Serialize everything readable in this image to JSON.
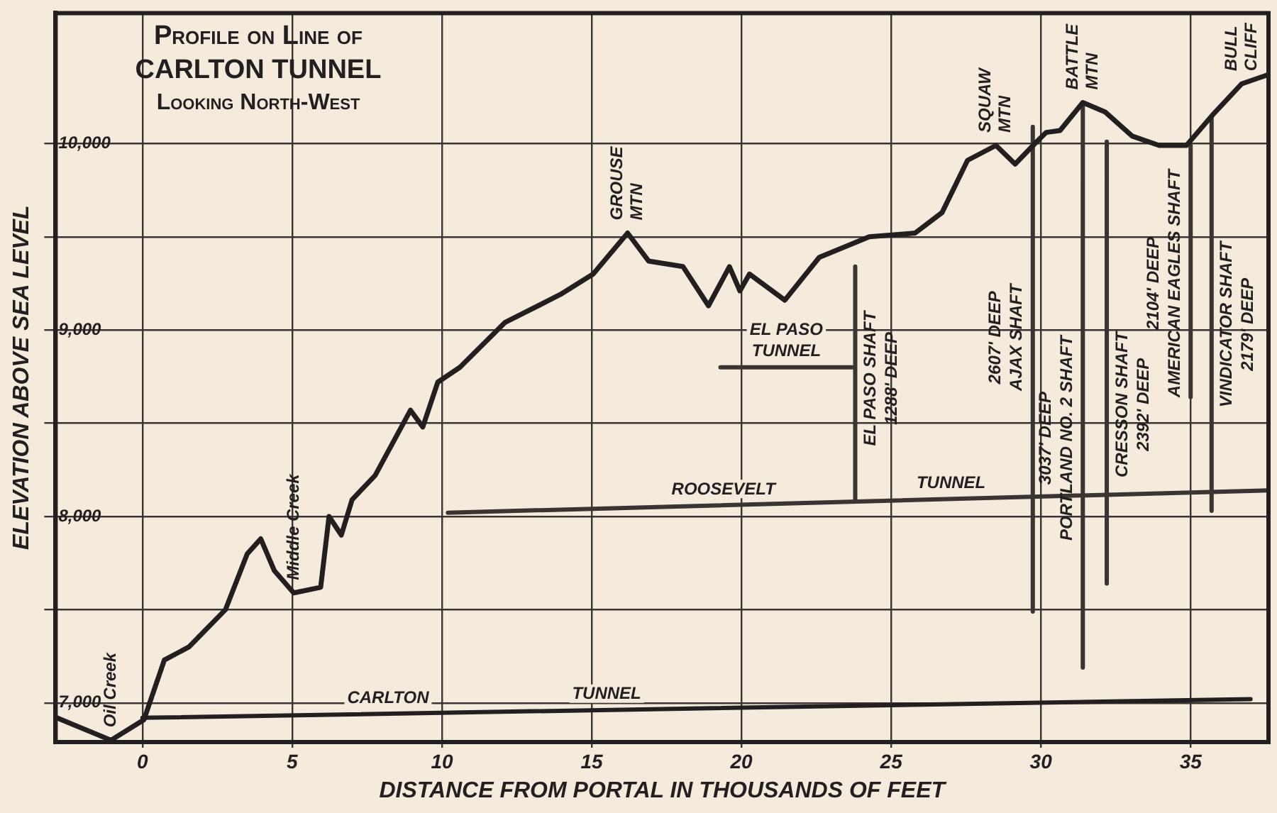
{
  "chart_data": {
    "type": "line",
    "title": "Profile on Line of CARLTON TUNNEL",
    "subtitle": "Looking North-West",
    "xlabel": "DISTANCE FROM PORTAL IN THOUSANDS OF FEET",
    "ylabel": "ELEVATION ABOVE SEA LEVEL",
    "xlim": [
      -2.9,
      37.6
    ],
    "xticks": [
      0,
      5,
      10,
      15,
      20,
      25,
      30,
      35
    ],
    "ylim": [
      6790,
      10700
    ],
    "yticks": [
      {
        "value": 7000,
        "label": "7,000"
      },
      {
        "value": 7500,
        "label": null
      },
      {
        "value": 8000,
        "label": "8,000"
      },
      {
        "value": 8500,
        "label": null
      },
      {
        "value": 9000,
        "label": "9,000"
      },
      {
        "value": 9500,
        "label": null
      },
      {
        "value": 10000,
        "label": "10,000"
      }
    ],
    "grid": true,
    "series": [
      {
        "color": "#231f20",
        "x": [
          -2.86,
          -1.05,
          0.05,
          0.73,
          1.55,
          2.77,
          3.5,
          3.95,
          4.4,
          5.05,
          5.95,
          6.23,
          6.64,
          7.0,
          7.77,
          8.95,
          9.36,
          9.86,
          10.6,
          12.1,
          13.95,
          15.05,
          16.2,
          16.9,
          18.05,
          18.9,
          19.6,
          19.95,
          20.27,
          21.45,
          22.6,
          24.27,
          25.8,
          26.7,
          27.55,
          28.5,
          29.14,
          29.86,
          30.18,
          30.64,
          31.4,
          32.14,
          33.05,
          33.95,
          34.86,
          35.77,
          36.7,
          37.6
        ],
        "values": [
          6920,
          6800,
          6910,
          7230,
          7300,
          7500,
          7800,
          7880,
          7710,
          7590,
          7620,
          8000,
          7900,
          8090,
          8220,
          8570,
          8480,
          8720,
          8800,
          9040,
          9190,
          9300,
          9520,
          9370,
          9340,
          9130,
          9340,
          9210,
          9300,
          9160,
          9390,
          9500,
          9520,
          9630,
          9910,
          9990,
          9890,
          10010,
          10060,
          10070,
          10220,
          10170,
          10040,
          9990,
          9990,
          10160,
          10320,
          10370
        ]
      },
      {
        "color": "#231f20",
        "x": [
          0,
          37
        ],
        "values": [
          6920,
          7020
        ]
      },
      {
        "color": "#3a3433",
        "x": [
          10.2,
          37.6
        ],
        "values": [
          8020,
          8140
        ]
      },
      {
        "color": "#3a3433",
        "x": [
          19.3,
          23.7
        ],
        "values": [
          8800,
          8800
        ]
      },
      {
        "color": "#3a3433",
        "x": [
          23.8,
          23.8
        ],
        "values": [
          9340,
          8080
        ]
      },
      {
        "color": "#3a3433",
        "x": [
          29.73,
          29.73
        ],
        "values": [
          10090,
          7490
        ]
      },
      {
        "color": "#3a3433",
        "x": [
          31.4,
          31.4
        ],
        "values": [
          10200,
          7190
        ]
      },
      {
        "color": "#3a3433",
        "x": [
          32.2,
          32.2
        ],
        "values": [
          10010,
          7640
        ]
      },
      {
        "color": "#3a3433",
        "x": [
          35.0,
          35.0
        ],
        "values": [
          9990,
          8640
        ]
      },
      {
        "color": "#3a3433",
        "x": [
          35.7,
          35.7
        ],
        "values": [
          10140,
          8030
        ]
      }
    ],
    "annotations": [
      {
        "text": "Oil Creek",
        "x": -1.05,
        "y": 6800
      },
      {
        "text": "Middle Creek",
        "x": 5.05,
        "y": 7590
      },
      {
        "text": "GROUSE MTN",
        "x": 16.2,
        "y": 9520
      },
      {
        "text": "SQUAW MTN",
        "x": 28.5,
        "y": 9990
      },
      {
        "text": "BATTLE MTN",
        "x": 31.4,
        "y": 10220
      },
      {
        "text": "BULL CLIFF",
        "x": 36.7,
        "y": 10320
      },
      {
        "text": "TUNNEL",
        "x": 21.5,
        "y": 8800
      },
      {
        "text": "EL PASO",
        "x": 21.5,
        "y": 8800
      },
      {
        "text": "ROOSEVELT",
        "x": 19.4,
        "y": 8060
      },
      {
        "text": "TUNNEL",
        "x": 27.0,
        "y": 8094
      },
      {
        "text": "CARLTON",
        "x": 8.2,
        "y": 6942
      },
      {
        "text": "TUNNEL",
        "x": 15.5,
        "y": 6962
      },
      {
        "text": "EL PASO SHAFT",
        "x": 23.8,
        "y": 8740
      },
      {
        "text": "1288' DEEP",
        "x": 23.8,
        "y": 8740
      },
      {
        "text": "AJAX SHAFT",
        "x": 29.73,
        "y": 8960
      },
      {
        "text": "2607' DEEP",
        "x": 29.73,
        "y": 8960
      },
      {
        "text": "PORTLAND NO. 2 SHAFT",
        "x": 31.4,
        "y": 8420
      },
      {
        "text": "3037' DEEP",
        "x": 31.4,
        "y": 8420
      },
      {
        "text": "CRESSON SHAFT",
        "x": 32.2,
        "y": 8600
      },
      {
        "text": "2392' DEEP",
        "x": 32.2,
        "y": 8600
      },
      {
        "text": "AMERICAN EAGLES SHAFT",
        "x": 35.0,
        "y": 9250
      },
      {
        "text": "2104' DEEP",
        "x": 35.0,
        "y": 9250
      },
      {
        "text": "VINDICATOR SHAFT",
        "x": 35.7,
        "y": 9030
      },
      {
        "text": "2179' DEEP",
        "x": 35.7,
        "y": 9030
      }
    ]
  }
}
